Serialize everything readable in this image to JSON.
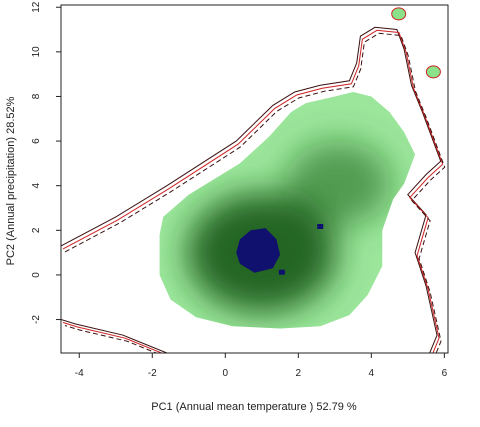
{
  "chart_data": {
    "type": "heatmap",
    "title": "",
    "xlabel": "PC1 (Annual mean temperature ) 52.79 %",
    "ylabel": "PC2 (Annual precipitation) 28.52%",
    "xlim": [
      -4.5,
      6.1
    ],
    "ylim": [
      -3.5,
      12.1
    ],
    "x_ticks": [
      -4,
      -2,
      0,
      2,
      4,
      6
    ],
    "y_ticks": [
      -2,
      0,
      2,
      4,
      6,
      8,
      10,
      12
    ],
    "grid": false,
    "legend": "none",
    "density_peaks": [
      {
        "x": 1.0,
        "y": 1.0,
        "level": 1.0
      },
      {
        "x": 3.1,
        "y": 4.1,
        "level": 0.6
      }
    ],
    "overlap_region_points": [
      [
        0.4,
        1.6
      ],
      [
        0.7,
        2.0
      ],
      [
        1.1,
        2.1
      ],
      [
        1.4,
        1.6
      ],
      [
        1.5,
        0.9
      ],
      [
        1.3,
        0.3
      ],
      [
        0.8,
        0.1
      ],
      [
        0.4,
        0.5
      ],
      [
        0.3,
        1.0
      ]
    ],
    "overlap_isolated": [
      [
        1.55,
        0.1
      ],
      [
        2.6,
        2.15
      ]
    ],
    "outer_contour_points": [
      [
        -4.5,
        1.3
      ],
      [
        -3.0,
        2.6
      ],
      [
        -1.6,
        4.0
      ],
      [
        0.3,
        6.0
      ],
      [
        1.3,
        7.6
      ],
      [
        1.9,
        8.2
      ],
      [
        2.6,
        8.5
      ],
      [
        3.4,
        8.7
      ],
      [
        3.6,
        9.5
      ],
      [
        3.7,
        10.7
      ],
      [
        4.1,
        11.1
      ],
      [
        4.7,
        11.0
      ],
      [
        4.9,
        10.1
      ],
      [
        5.1,
        8.5
      ],
      [
        5.4,
        7.3
      ],
      [
        5.9,
        5.1
      ],
      [
        5.5,
        4.5
      ],
      [
        5.0,
        3.6
      ],
      [
        5.5,
        2.7
      ],
      [
        5.2,
        1.0
      ],
      [
        5.5,
        -0.5
      ],
      [
        5.8,
        -2.7
      ],
      [
        5.6,
        -3.5
      ],
      [
        -1.6,
        -3.5
      ],
      [
        -2.8,
        -2.7
      ],
      [
        -4.1,
        -2.2
      ],
      [
        -4.5,
        -2.0
      ]
    ],
    "small_islands": [
      {
        "x": 4.75,
        "y": 11.7
      },
      {
        "x": 5.7,
        "y": 9.1
      }
    ],
    "colors": {
      "density_high": "#1a5e1a",
      "density_low": "#9be69b",
      "overlap": "#10106e",
      "contour_red": "#cc2222",
      "contour_dark": "#3a1010",
      "island_fill": "#8be28b"
    }
  }
}
